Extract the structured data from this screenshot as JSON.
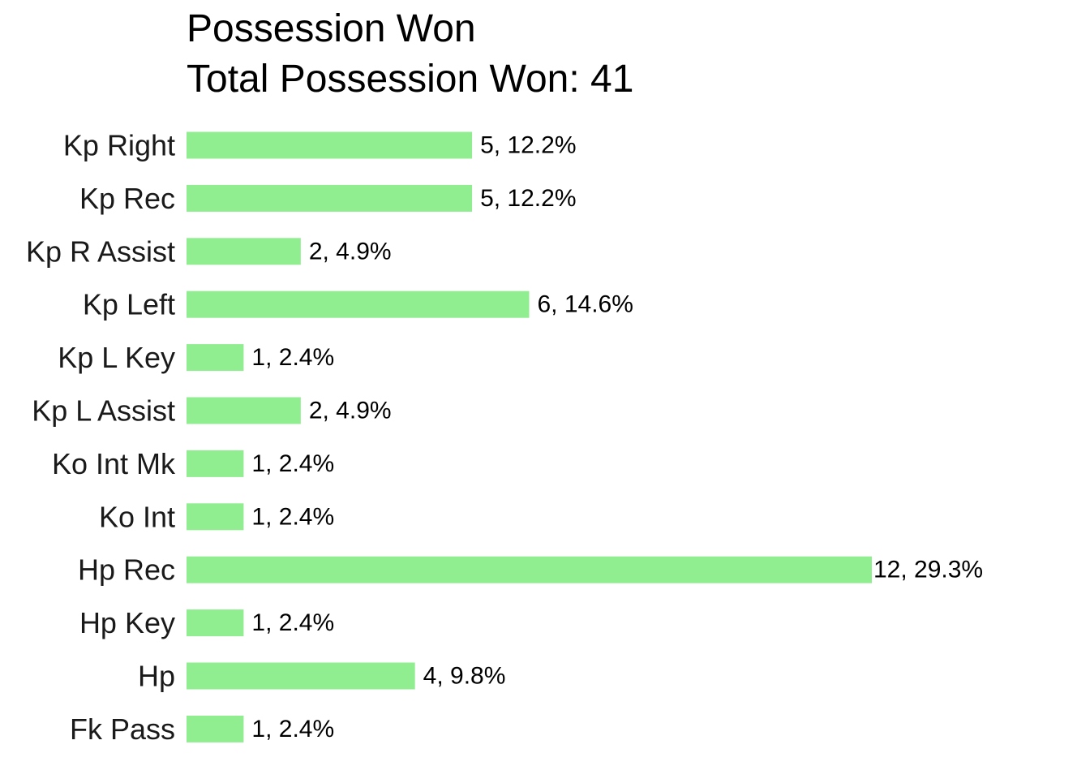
{
  "chart_data": {
    "type": "bar",
    "orientation": "horizontal",
    "title": "Possession Won",
    "subtitle": "Total Possession Won: 41",
    "xlabel": "",
    "ylabel": "",
    "grid": false,
    "bar_color": "#90ee90",
    "categories": [
      "Kp Right",
      "Kp Rec",
      "Kp R Assist",
      "Kp Left",
      "Kp L Key",
      "Kp L Assist",
      "Ko Int Mk",
      "Ko Int",
      "Hp Rec",
      "Hp Key",
      "Hp",
      "Fk Pass"
    ],
    "values": [
      5,
      5,
      2,
      6,
      1,
      2,
      1,
      1,
      12,
      1,
      4,
      1
    ],
    "data_labels": [
      "5, 12.2%",
      "5, 12.2%",
      "2, 4.9%",
      "6, 14.6%",
      "1, 2.4%",
      "2, 4.9%",
      "1, 2.4%",
      "1, 2.4%",
      "12, 29.3%",
      "1, 2.4%",
      "4, 9.8%",
      "1, 2.4%"
    ],
    "xlim": [
      0,
      12
    ]
  }
}
